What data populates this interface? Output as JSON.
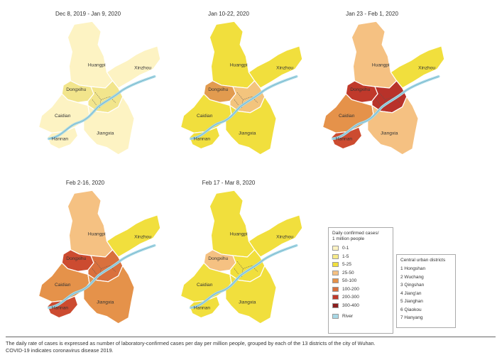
{
  "panels": [
    {
      "id": "p1",
      "title": "Dec 8, 2019 - Jan 9, 2020",
      "colors": {
        "huangpi": "#fdf3c3",
        "xinzhou": "#fdf3c3",
        "caidian": "#fdf3c3",
        "hannan": "#fdf3c3",
        "jiangxia": "#fdf3c3",
        "dongxihu": "#f2e58c",
        "central": "#f2e58c"
      }
    },
    {
      "id": "p2",
      "title": "Jan 10-22, 2020",
      "colors": {
        "huangpi": "#f1df3d",
        "xinzhou": "#f1df3d",
        "caidian": "#f1df3d",
        "hannan": "#f1df3d",
        "jiangxia": "#f1df3d",
        "dongxihu": "#e29b4f",
        "central": "#f3c47d"
      }
    },
    {
      "id": "p3",
      "title": "Jan 23 - Feb 1, 2020",
      "colors": {
        "huangpi": "#f5c182",
        "xinzhou": "#f1df3d",
        "caidian": "#e5924a",
        "hannan": "#cc4b30",
        "jiangxia": "#f5c182",
        "dongxihu": "#c0392b",
        "central": "#b8322a"
      }
    },
    {
      "id": "p4",
      "title": "Feb 2-16, 2020",
      "colors": {
        "huangpi": "#f5c182",
        "xinzhou": "#f1df3d",
        "caidian": "#e5924a",
        "hannan": "#cc4b30",
        "jiangxia": "#e5924a",
        "dongxihu": "#cc4b30",
        "central": "#d9703d"
      }
    },
    {
      "id": "p5",
      "title": "Feb 17 - Mar 8, 2020",
      "colors": {
        "huangpi": "#f1df3d",
        "xinzhou": "#f1df3d",
        "caidian": "#f1df3d",
        "hannan": "#f1df3d",
        "jiangxia": "#f1df3d",
        "dongxihu": "#f5c182",
        "central": "#f1df3d"
      }
    }
  ],
  "district_labels": {
    "huangpi": "Huangpi",
    "xinzhou": "Xinzhou",
    "dongxihu": "Dongxihu",
    "caidian": "Caidian",
    "hannan": "Hannan",
    "jiangxia": "Jiangxia"
  },
  "legend": {
    "title_line1": "Daily confirmed cases/",
    "title_line2": "1 million people",
    "items": [
      {
        "label": "0-1",
        "color": "#fdf3c3"
      },
      {
        "label": "1-5",
        "color": "#f7eb8a"
      },
      {
        "label": "5-25",
        "color": "#f1df3d"
      },
      {
        "label": "25-50",
        "color": "#f5c182"
      },
      {
        "label": "50-100",
        "color": "#e5924a"
      },
      {
        "label": "100-200",
        "color": "#d9703d"
      },
      {
        "label": "200-300",
        "color": "#c0392b"
      },
      {
        "label": "300-400",
        "color": "#8b1e1e"
      }
    ],
    "river_label": "River",
    "river_color": "#a8d8e6"
  },
  "districts": {
    "title": "Central urban districts",
    "items": [
      "1 Hongshan",
      "2 Wuchang",
      "3 Qingshan",
      "4 Jiang'an",
      "5 Jianghan",
      "6 Qiaokou",
      "7 Hanyang"
    ]
  },
  "caption": {
    "line1": "The daily rate of cases is expressed as number of laboratory-confirmed cases per day per million people, grouped by each of the 13 districts of the city of Wuhan.",
    "line2": "COVID-19 indicates coronavirus disease 2019."
  }
}
